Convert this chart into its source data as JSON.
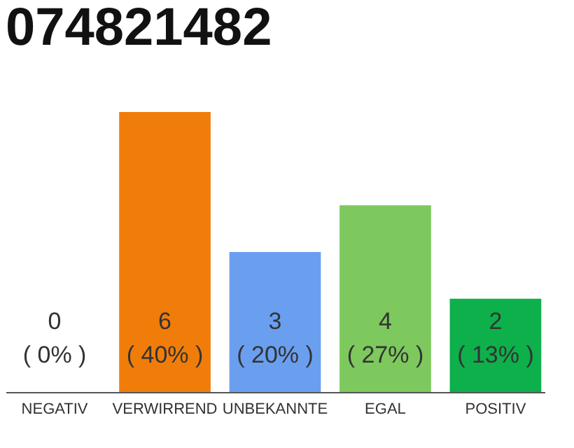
{
  "chart_data": {
    "type": "bar",
    "title": "074821482",
    "categories": [
      "NEGATIV",
      "VERWIRREND",
      "UNBEKANNTE",
      "EGAL",
      "POSITIV"
    ],
    "values": [
      0,
      6,
      3,
      4,
      2
    ],
    "colors": [
      "#b0b0b0",
      "#f07d0a",
      "#6a9ff0",
      "#7dc95d",
      "#0db04a"
    ],
    "value_labels": [
      "0\n( 0% )",
      "6\n( 40% )",
      "3\n( 20% )",
      "4\n( 27% )",
      "2\n( 13% )"
    ]
  }
}
